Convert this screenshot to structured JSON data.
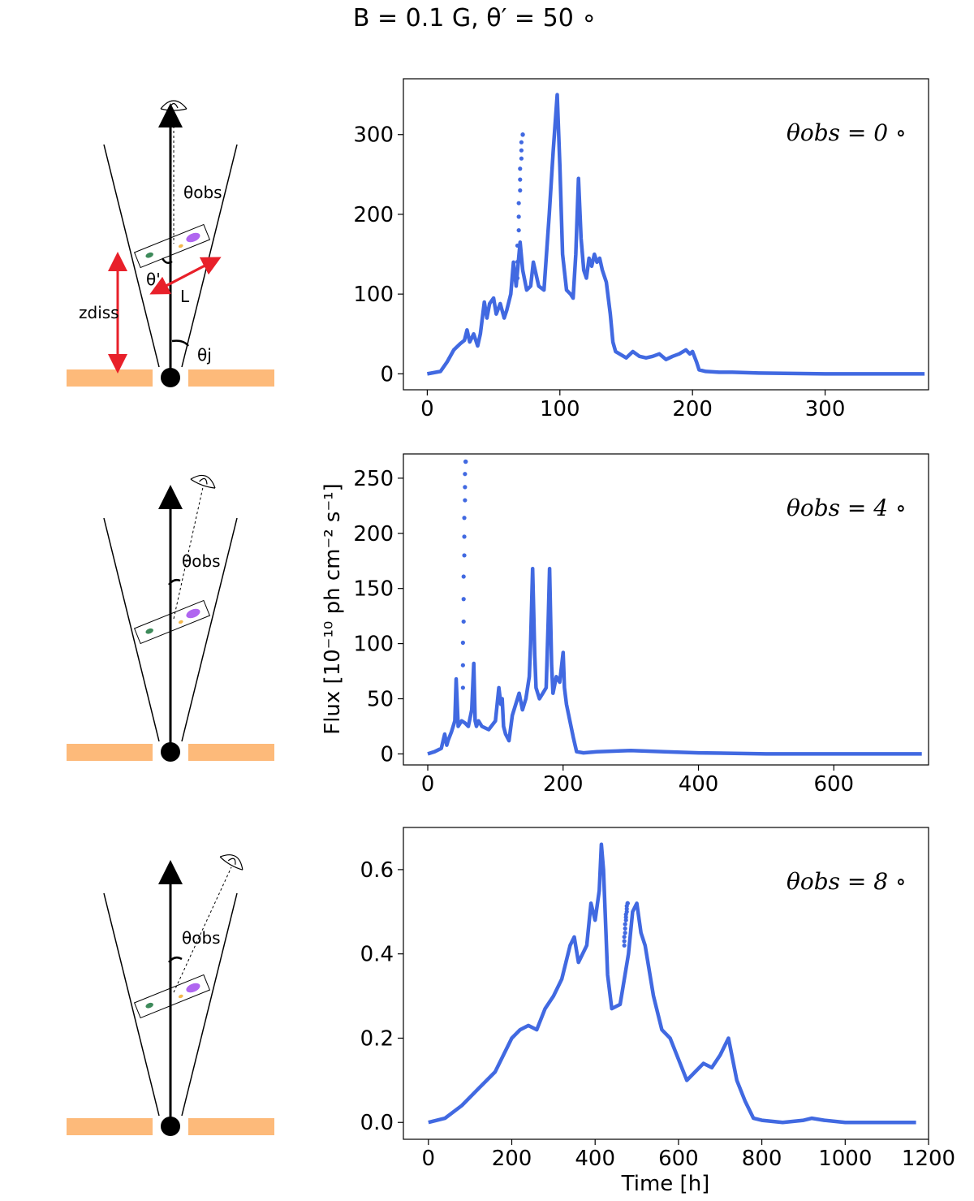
{
  "figure": {
    "title": "B = 0.1 G, θ′ = 50 ∘",
    "line_color": "#4169E1",
    "disk_color": "#FDBA7A",
    "arrow_color": "#E8202A",
    "cone_label_obs": "θobs",
    "diagram_labels": {
      "theta_obs": "θobs",
      "theta_prime": "θ'",
      "length": "L",
      "z_diss": "zdiss",
      "theta_j": "θj"
    }
  },
  "chart_data": [
    {
      "type": "line",
      "title": "",
      "annotation": "θobs = 0 ∘",
      "xlabel": "",
      "ylabel": "",
      "xlim": [
        -18,
        378
      ],
      "ylim": [
        -20,
        370
      ],
      "xticks": [
        0,
        100,
        200,
        300
      ],
      "yticks": [
        0,
        100,
        200,
        300
      ],
      "series": [
        {
          "name": "flux",
          "x": [
            0,
            10,
            15,
            20,
            25,
            28,
            30,
            32,
            35,
            38,
            40,
            43,
            45,
            47,
            50,
            52,
            55,
            58,
            60,
            63,
            65,
            67,
            70,
            72,
            75,
            78,
            80,
            84,
            88,
            92,
            95,
            98,
            100,
            102,
            105,
            108,
            110,
            112,
            114,
            116,
            118,
            120,
            122,
            124,
            126,
            128,
            130,
            132,
            135,
            138,
            140,
            142,
            145,
            150,
            155,
            160,
            165,
            170,
            175,
            180,
            185,
            190,
            195,
            198,
            200,
            203,
            205,
            210,
            220,
            230,
            250,
            300,
            350,
            375
          ],
          "y": [
            0,
            3,
            15,
            30,
            38,
            42,
            55,
            40,
            50,
            35,
            50,
            90,
            70,
            88,
            95,
            75,
            88,
            70,
            80,
            100,
            140,
            110,
            165,
            130,
            105,
            110,
            140,
            110,
            105,
            200,
            280,
            350,
            260,
            150,
            105,
            100,
            95,
            150,
            245,
            170,
            130,
            120,
            145,
            135,
            150,
            140,
            145,
            130,
            115,
            75,
            40,
            28,
            25,
            20,
            28,
            22,
            20,
            22,
            25,
            18,
            22,
            25,
            30,
            25,
            28,
            15,
            5,
            3,
            2,
            2,
            1,
            0,
            0,
            0
          ]
        },
        {
          "name": "dotted-spike",
          "x": [
            68,
            69,
            70,
            71,
            72
          ],
          "y": [
            120,
            180,
            230,
            270,
            300
          ]
        }
      ]
    },
    {
      "type": "line",
      "title": "",
      "annotation": "θobs = 4 ∘",
      "xlabel": "",
      "ylabel": "Flux [10⁻¹⁰ ph cm⁻² s⁻¹]",
      "xlim": [
        -36,
        740
      ],
      "ylim": [
        -10,
        272
      ],
      "xticks": [
        0,
        200,
        400,
        600
      ],
      "yticks": [
        0,
        50,
        100,
        150,
        200,
        250
      ],
      "series": [
        {
          "name": "flux",
          "x": [
            0,
            10,
            20,
            25,
            28,
            30,
            35,
            40,
            42,
            45,
            50,
            55,
            60,
            65,
            68,
            70,
            72,
            75,
            80,
            90,
            100,
            105,
            108,
            110,
            112,
            115,
            120,
            125,
            130,
            135,
            140,
            145,
            150,
            152,
            155,
            158,
            160,
            165,
            170,
            175,
            178,
            180,
            183,
            185,
            190,
            195,
            200,
            202,
            205,
            210,
            215,
            220,
            230,
            250,
            300,
            350,
            400,
            500,
            600,
            700,
            730
          ],
          "y": [
            0,
            2,
            5,
            18,
            8,
            12,
            20,
            30,
            68,
            25,
            30,
            28,
            25,
            40,
            82,
            30,
            25,
            30,
            25,
            22,
            30,
            60,
            45,
            50,
            25,
            18,
            12,
            35,
            45,
            55,
            40,
            50,
            70,
            100,
            168,
            90,
            60,
            50,
            55,
            60,
            120,
            168,
            80,
            55,
            70,
            65,
            92,
            60,
            45,
            30,
            15,
            2,
            1,
            2,
            3,
            2,
            1,
            0,
            0,
            0,
            0
          ]
        },
        {
          "name": "dotted-spike",
          "x": [
            52,
            53,
            54,
            55,
            56
          ],
          "y": [
            60,
            120,
            180,
            230,
            265
          ]
        }
      ]
    },
    {
      "type": "line",
      "title": "",
      "annotation": "θobs = 8 ∘",
      "xlabel": "Time [h]",
      "ylabel": "",
      "xlim": [
        -60,
        1200
      ],
      "ylim": [
        -0.04,
        0.7
      ],
      "xticks": [
        0,
        200,
        400,
        600,
        800,
        1000,
        1200
      ],
      "yticks": [
        0.0,
        0.2,
        0.4,
        0.6
      ],
      "series": [
        {
          "name": "flux",
          "x": [
            0,
            40,
            80,
            120,
            160,
            200,
            220,
            240,
            260,
            280,
            300,
            320,
            340,
            350,
            360,
            380,
            390,
            400,
            410,
            415,
            420,
            430,
            440,
            460,
            480,
            490,
            500,
            510,
            520,
            540,
            560,
            580,
            600,
            620,
            640,
            660,
            680,
            700,
            720,
            740,
            760,
            780,
            800,
            850,
            900,
            920,
            950,
            1000,
            1100,
            1170
          ],
          "y": [
            0,
            0.01,
            0.04,
            0.08,
            0.12,
            0.2,
            0.22,
            0.23,
            0.22,
            0.27,
            0.3,
            0.34,
            0.42,
            0.44,
            0.38,
            0.42,
            0.52,
            0.48,
            0.55,
            0.66,
            0.6,
            0.35,
            0.27,
            0.28,
            0.4,
            0.5,
            0.52,
            0.45,
            0.42,
            0.3,
            0.22,
            0.2,
            0.15,
            0.1,
            0.12,
            0.14,
            0.13,
            0.16,
            0.2,
            0.1,
            0.05,
            0.01,
            0.005,
            0.0,
            0.005,
            0.01,
            0.005,
            0.0,
            0.0,
            0.0
          ]
        },
        {
          "name": "dotted-spike",
          "x": [
            470,
            472,
            474,
            476,
            478
          ],
          "y": [
            0.42,
            0.45,
            0.48,
            0.5,
            0.52
          ]
        }
      ]
    }
  ]
}
